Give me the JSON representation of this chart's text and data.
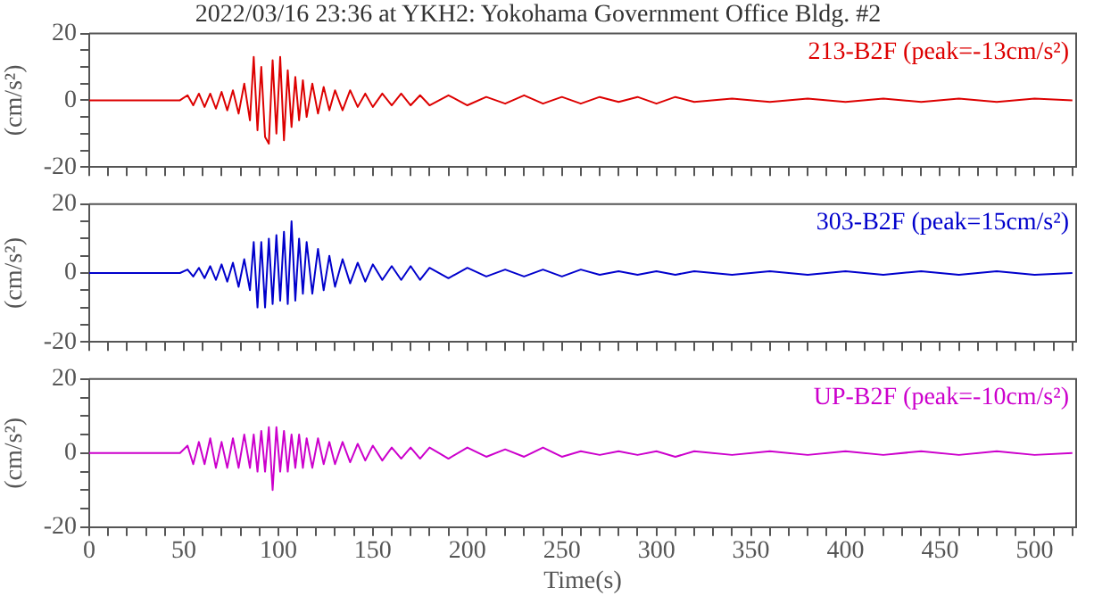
{
  "chart_data": [
    {
      "type": "line",
      "title": "2022/03/16 23:36 at YKH2: Yokohama Government Office Bldg. #2",
      "ylabel": "(cm/s²)",
      "tick_labels": "y",
      "xlim": [
        0,
        522
      ],
      "ylim": [
        -20,
        20
      ],
      "xticks": [
        0,
        {
          "value": 10,
          "label": null
        },
        {
          "value": 20,
          "label": null
        },
        {
          "value": 30,
          "label": null
        },
        {
          "value": 40,
          "label": null
        },
        50,
        {
          "value": 60,
          "label": null
        },
        {
          "value": 70,
          "label": null
        },
        {
          "value": 80,
          "label": null
        },
        {
          "value": 90,
          "label": null
        },
        100,
        {
          "value": 110,
          "label": null
        },
        {
          "value": 120,
          "label": null
        },
        {
          "value": 130,
          "label": null
        },
        {
          "value": 140,
          "label": null
        },
        150,
        {
          "value": 160,
          "label": null
        },
        {
          "value": 170,
          "label": null
        },
        {
          "value": 180,
          "label": null
        },
        {
          "value": 190,
          "label": null
        },
        200,
        {
          "value": 210,
          "label": null
        },
        {
          "value": 220,
          "label": null
        },
        {
          "value": 230,
          "label": null
        },
        {
          "value": 240,
          "label": null
        },
        250,
        {
          "value": 260,
          "label": null
        },
        {
          "value": 270,
          "label": null
        },
        {
          "value": 280,
          "label": null
        },
        {
          "value": 290,
          "label": null
        },
        300,
        {
          "value": 310,
          "label": null
        },
        {
          "value": 320,
          "label": null
        },
        {
          "value": 330,
          "label": null
        },
        {
          "value": 340,
          "label": null
        },
        350,
        {
          "value": 360,
          "label": null
        },
        {
          "value": 370,
          "label": null
        },
        {
          "value": 380,
          "label": null
        },
        {
          "value": 390,
          "label": null
        },
        400,
        {
          "value": 410,
          "label": null
        },
        {
          "value": 420,
          "label": null
        },
        {
          "value": 430,
          "label": null
        },
        {
          "value": 440,
          "label": null
        },
        450,
        {
          "value": 460,
          "label": null
        },
        {
          "value": 470,
          "label": null
        },
        {
          "value": 480,
          "label": null
        },
        {
          "value": 490,
          "label": null
        },
        500,
        {
          "value": 510,
          "label": null
        },
        {
          "value": 520,
          "label": null
        }
      ],
      "yticks": [
        -20,
        {
          "value": -15,
          "label": null
        },
        {
          "value": -10,
          "label": null
        },
        {
          "value": -5,
          "label": null
        },
        0,
        {
          "value": 5,
          "label": null
        },
        {
          "value": 10,
          "label": null
        },
        {
          "value": 15,
          "label": null
        },
        20
      ],
      "x": [
        0,
        10,
        20,
        30,
        40,
        48,
        52,
        55,
        58,
        61,
        64,
        67,
        70,
        73,
        76,
        79,
        82,
        85,
        87,
        89,
        91,
        93,
        95,
        97,
        99,
        101,
        103,
        105,
        107,
        109,
        111,
        113,
        115,
        118,
        121,
        124,
        127,
        130,
        134,
        138,
        142,
        146,
        150,
        155,
        160,
        165,
        170,
        175,
        180,
        190,
        200,
        210,
        220,
        230,
        240,
        250,
        260,
        270,
        280,
        290,
        300,
        310,
        320,
        340,
        360,
        380,
        400,
        420,
        440,
        460,
        480,
        500,
        520
      ],
      "series": [
        {
          "name": "213-B2F (peak=-13cm/s²)",
          "color": "#dd0000",
          "values": [
            0,
            0,
            0,
            0,
            0,
            0,
            1.5,
            -1.5,
            2,
            -2,
            2,
            -2.5,
            2.5,
            -3,
            3,
            -4,
            5,
            -6,
            13,
            -9,
            10,
            -11,
            -13,
            12,
            -10,
            13,
            -12,
            9,
            -8,
            7,
            -6,
            6,
            -5,
            5,
            -4,
            4,
            -3,
            3,
            -3,
            3,
            -2,
            2,
            -2,
            2,
            -1.5,
            2,
            -1.5,
            1.5,
            -1.5,
            1.5,
            -1.5,
            1,
            -1,
            1.5,
            -1,
            1,
            -1,
            1,
            -0.5,
            1,
            -1,
            1,
            -0.5,
            0.5,
            -0.5,
            0.5,
            -0.5,
            0.5,
            -0.5,
            0.5,
            -0.5,
            0.5,
            0
          ]
        }
      ]
    },
    {
      "type": "line",
      "ylabel": "(cm/s²)",
      "tick_labels": "y",
      "xlim": [
        0,
        522
      ],
      "ylim": [
        -20,
        20
      ],
      "xticks": [
        0,
        {
          "value": 10,
          "label": null
        },
        {
          "value": 20,
          "label": null
        },
        {
          "value": 30,
          "label": null
        },
        {
          "value": 40,
          "label": null
        },
        50,
        {
          "value": 60,
          "label": null
        },
        {
          "value": 70,
          "label": null
        },
        {
          "value": 80,
          "label": null
        },
        {
          "value": 90,
          "label": null
        },
        100,
        {
          "value": 110,
          "label": null
        },
        {
          "value": 120,
          "label": null
        },
        {
          "value": 130,
          "label": null
        },
        {
          "value": 140,
          "label": null
        },
        150,
        {
          "value": 160,
          "label": null
        },
        {
          "value": 170,
          "label": null
        },
        {
          "value": 180,
          "label": null
        },
        {
          "value": 190,
          "label": null
        },
        200,
        {
          "value": 210,
          "label": null
        },
        {
          "value": 220,
          "label": null
        },
        {
          "value": 230,
          "label": null
        },
        {
          "value": 240,
          "label": null
        },
        250,
        {
          "value": 260,
          "label": null
        },
        {
          "value": 270,
          "label": null
        },
        {
          "value": 280,
          "label": null
        },
        {
          "value": 290,
          "label": null
        },
        300,
        {
          "value": 310,
          "label": null
        },
        {
          "value": 320,
          "label": null
        },
        {
          "value": 330,
          "label": null
        },
        {
          "value": 340,
          "label": null
        },
        350,
        {
          "value": 360,
          "label": null
        },
        {
          "value": 370,
          "label": null
        },
        {
          "value": 380,
          "label": null
        },
        {
          "value": 390,
          "label": null
        },
        400,
        {
          "value": 410,
          "label": null
        },
        {
          "value": 420,
          "label": null
        },
        {
          "value": 430,
          "label": null
        },
        {
          "value": 440,
          "label": null
        },
        450,
        {
          "value": 460,
          "label": null
        },
        {
          "value": 470,
          "label": null
        },
        {
          "value": 480,
          "label": null
        },
        {
          "value": 490,
          "label": null
        },
        500,
        {
          "value": 510,
          "label": null
        },
        {
          "value": 520,
          "label": null
        }
      ],
      "yticks": [
        -20,
        {
          "value": -15,
          "label": null
        },
        {
          "value": -10,
          "label": null
        },
        {
          "value": -5,
          "label": null
        },
        0,
        {
          "value": 5,
          "label": null
        },
        {
          "value": 10,
          "label": null
        },
        {
          "value": 15,
          "label": null
        },
        20
      ],
      "x": [
        0,
        10,
        20,
        30,
        40,
        48,
        52,
        55,
        58,
        61,
        64,
        67,
        70,
        73,
        76,
        79,
        82,
        85,
        87,
        89,
        91,
        93,
        95,
        97,
        99,
        101,
        103,
        105,
        107,
        109,
        111,
        113,
        115,
        118,
        121,
        124,
        127,
        130,
        134,
        138,
        142,
        146,
        150,
        155,
        160,
        165,
        170,
        175,
        180,
        190,
        200,
        210,
        220,
        230,
        240,
        250,
        260,
        270,
        280,
        290,
        300,
        310,
        320,
        340,
        360,
        380,
        400,
        420,
        440,
        460,
        480,
        500,
        520
      ],
      "series": [
        {
          "name": "303-B2F (peak=15cm/s²)",
          "color": "#0000cc",
          "values": [
            0,
            0,
            0,
            0,
            0,
            0,
            1,
            -1,
            1.5,
            -1.5,
            2,
            -2,
            2.5,
            -2.5,
            3,
            -4,
            4,
            -5,
            9,
            -10,
            9,
            -10,
            10,
            -9,
            11,
            -8,
            12,
            -9,
            15,
            -8,
            10,
            -6,
            9,
            -6,
            7,
            -5,
            5,
            -4,
            4,
            -3,
            3,
            -2.5,
            2.5,
            -2,
            2,
            -2,
            2,
            -2,
            1.5,
            -1.5,
            1.5,
            -1,
            1,
            -1,
            1,
            -1,
            1,
            -0.5,
            0.5,
            -0.5,
            0.5,
            -0.5,
            0.5,
            -0.5,
            0.5,
            -0.5,
            0.5,
            -0.5,
            0.5,
            -0.5,
            0.5,
            -0.5,
            0
          ]
        }
      ]
    },
    {
      "type": "line",
      "ylabel": "(cm/s²)",
      "xlabel": "Time(s)",
      "xlim": [
        0,
        522
      ],
      "ylim": [
        -20,
        20
      ],
      "xticks": [
        0,
        {
          "value": 10,
          "label": null
        },
        {
          "value": 20,
          "label": null
        },
        {
          "value": 30,
          "label": null
        },
        {
          "value": 40,
          "label": null
        },
        50,
        {
          "value": 60,
          "label": null
        },
        {
          "value": 70,
          "label": null
        },
        {
          "value": 80,
          "label": null
        },
        {
          "value": 90,
          "label": null
        },
        100,
        {
          "value": 110,
          "label": null
        },
        {
          "value": 120,
          "label": null
        },
        {
          "value": 130,
          "label": null
        },
        {
          "value": 140,
          "label": null
        },
        150,
        {
          "value": 160,
          "label": null
        },
        {
          "value": 170,
          "label": null
        },
        {
          "value": 180,
          "label": null
        },
        {
          "value": 190,
          "label": null
        },
        200,
        {
          "value": 210,
          "label": null
        },
        {
          "value": 220,
          "label": null
        },
        {
          "value": 230,
          "label": null
        },
        {
          "value": 240,
          "label": null
        },
        250,
        {
          "value": 260,
          "label": null
        },
        {
          "value": 270,
          "label": null
        },
        {
          "value": 280,
          "label": null
        },
        {
          "value": 290,
          "label": null
        },
        300,
        {
          "value": 310,
          "label": null
        },
        {
          "value": 320,
          "label": null
        },
        {
          "value": 330,
          "label": null
        },
        {
          "value": 340,
          "label": null
        },
        350,
        {
          "value": 360,
          "label": null
        },
        {
          "value": 370,
          "label": null
        },
        {
          "value": 380,
          "label": null
        },
        {
          "value": 390,
          "label": null
        },
        400,
        {
          "value": 410,
          "label": null
        },
        {
          "value": 420,
          "label": null
        },
        {
          "value": 430,
          "label": null
        },
        {
          "value": 440,
          "label": null
        },
        450,
        {
          "value": 460,
          "label": null
        },
        {
          "value": 470,
          "label": null
        },
        {
          "value": 480,
          "label": null
        },
        {
          "value": 490,
          "label": null
        },
        500,
        {
          "value": 510,
          "label": null
        },
        {
          "value": 520,
          "label": null
        }
      ],
      "yticks": [
        -20,
        {
          "value": -15,
          "label": null
        },
        {
          "value": -10,
          "label": null
        },
        {
          "value": -5,
          "label": null
        },
        0,
        {
          "value": 5,
          "label": null
        },
        {
          "value": 10,
          "label": null
        },
        {
          "value": 15,
          "label": null
        },
        20
      ],
      "x": [
        0,
        10,
        20,
        30,
        40,
        48,
        52,
        55,
        58,
        61,
        64,
        67,
        70,
        73,
        76,
        79,
        82,
        85,
        87,
        89,
        91,
        93,
        95,
        97,
        99,
        101,
        103,
        105,
        107,
        109,
        111,
        113,
        115,
        118,
        121,
        124,
        127,
        130,
        134,
        138,
        142,
        146,
        150,
        155,
        160,
        165,
        170,
        175,
        180,
        190,
        200,
        210,
        220,
        230,
        240,
        250,
        260,
        270,
        280,
        290,
        300,
        310,
        320,
        340,
        360,
        380,
        400,
        420,
        440,
        460,
        480,
        500,
        520
      ],
      "series": [
        {
          "name": "UP-B2F (peak=-10cm/s²)",
          "color": "#cc00cc",
          "values": [
            0,
            0,
            0,
            0,
            0,
            0,
            2,
            -3,
            3,
            -3,
            4,
            -4,
            3,
            -4,
            4,
            -4,
            5,
            -4,
            5,
            -5,
            6,
            -5,
            7,
            -10,
            7,
            -5,
            6,
            -5,
            5,
            -4,
            5,
            -4,
            4,
            -4,
            4,
            -3,
            3,
            -3,
            3,
            -2.5,
            2.5,
            -2,
            2,
            -2,
            1.5,
            -1.5,
            1.5,
            -1.5,
            1.5,
            -1.5,
            1.5,
            -1,
            1,
            -1,
            1.5,
            -1,
            0.5,
            -0.5,
            0.5,
            -0.5,
            0.5,
            -1,
            0.5,
            -0.5,
            0.5,
            -0.5,
            0.5,
            -0.5,
            0.5,
            -0.5,
            0.5,
            -0.5,
            0
          ]
        }
      ]
    }
  ]
}
